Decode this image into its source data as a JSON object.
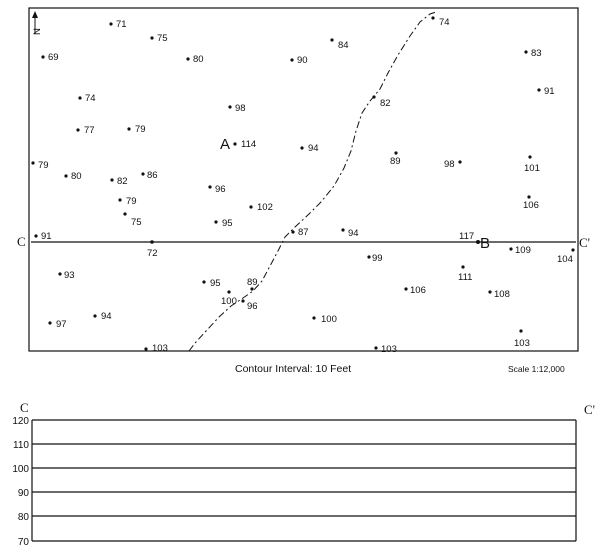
{
  "map": {
    "north_label": "N",
    "caption": "Contour Interval: 10 Feet",
    "scale": "Scale 1:12,000",
    "section_start": "C",
    "section_end": "C'",
    "point_a": "A",
    "point_b": "B",
    "elevations": [
      {
        "label": "71"
      },
      {
        "label": "75"
      },
      {
        "label": "69"
      },
      {
        "label": "80"
      },
      {
        "label": "90"
      },
      {
        "label": "84"
      },
      {
        "label": "74"
      },
      {
        "label": "83"
      },
      {
        "label": "91"
      },
      {
        "label": "74"
      },
      {
        "label": "98"
      },
      {
        "label": "82"
      },
      {
        "label": "77"
      },
      {
        "label": "79"
      },
      {
        "label": "114"
      },
      {
        "label": "94"
      },
      {
        "label": "89"
      },
      {
        "label": "98"
      },
      {
        "label": "101"
      },
      {
        "label": "79"
      },
      {
        "label": "80"
      },
      {
        "label": "82"
      },
      {
        "label": "86"
      },
      {
        "label": "96"
      },
      {
        "label": "106"
      },
      {
        "label": "79"
      },
      {
        "label": "102"
      },
      {
        "label": "75"
      },
      {
        "label": "95"
      },
      {
        "label": "91"
      },
      {
        "label": "87"
      },
      {
        "label": "94"
      },
      {
        "label": "117"
      },
      {
        "label": "72"
      },
      {
        "label": "109"
      },
      {
        "label": "104"
      },
      {
        "label": "99"
      },
      {
        "label": "93"
      },
      {
        "label": "111"
      },
      {
        "label": "95"
      },
      {
        "label": "89"
      },
      {
        "label": "106"
      },
      {
        "label": "108"
      },
      {
        "label": "100"
      },
      {
        "label": "96"
      },
      {
        "label": "94"
      },
      {
        "label": "97"
      },
      {
        "label": "100"
      },
      {
        "label": "103"
      },
      {
        "label": "103"
      },
      {
        "label": "103"
      }
    ]
  },
  "profile": {
    "start_label": "C",
    "end_label": "C'",
    "y_ticks": [
      "120",
      "110",
      "100",
      "90",
      "80",
      "70"
    ]
  }
}
